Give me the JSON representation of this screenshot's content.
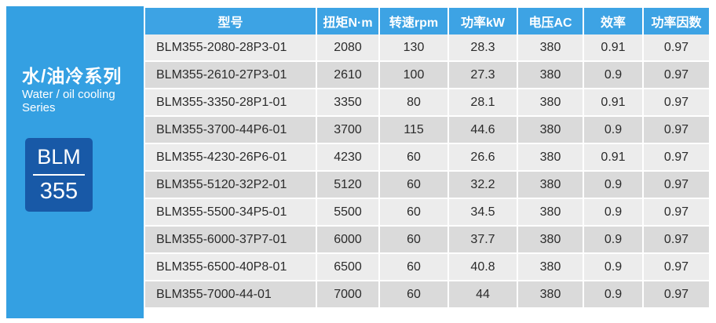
{
  "sidebar": {
    "title_cn": "水/油冷系列",
    "title_en_line1": "Water / oil cooling",
    "title_en_line2": "Series",
    "badge_top": "BLM",
    "badge_bottom": "355"
  },
  "table": {
    "headers": [
      "型号",
      "扭矩N·m",
      "转速rpm",
      "功率kW",
      "电压AC",
      "效率",
      "功率因数"
    ],
    "rows": [
      [
        "BLM355-2080-28P3-01",
        "2080",
        "130",
        "28.3",
        "380",
        "0.91",
        "0.97"
      ],
      [
        "BLM355-2610-27P3-01",
        "2610",
        "100",
        "27.3",
        "380",
        "0.9",
        "0.97"
      ],
      [
        "BLM355-3350-28P1-01",
        "3350",
        "80",
        "28.1",
        "380",
        "0.91",
        "0.97"
      ],
      [
        "BLM355-3700-44P6-01",
        "3700",
        "115",
        "44.6",
        "380",
        "0.9",
        "0.97"
      ],
      [
        "BLM355-4230-26P6-01",
        "4230",
        "60",
        "26.6",
        "380",
        "0.91",
        "0.97"
      ],
      [
        "BLM355-5120-32P2-01",
        "5120",
        "60",
        "32.2",
        "380",
        "0.9",
        "0.97"
      ],
      [
        "BLM355-5500-34P5-01",
        "5500",
        "60",
        "34.5",
        "380",
        "0.9",
        "0.97"
      ],
      [
        "BLM355-6000-37P7-01",
        "6000",
        "60",
        "37.7",
        "380",
        "0.9",
        "0.97"
      ],
      [
        "BLM355-6500-40P8-01",
        "6500",
        "60",
        "40.8",
        "380",
        "0.9",
        "0.97"
      ],
      [
        "BLM355-7000-44-01",
        "7000",
        "60",
        "44",
        "380",
        "0.9",
        "0.97"
      ]
    ]
  },
  "colors": {
    "sidebar_bg": "#34a0e2",
    "header_bg": "#3da3e4",
    "badge_bg": "#1859a7",
    "row_light": "#ececec",
    "row_dark": "#dadada"
  }
}
